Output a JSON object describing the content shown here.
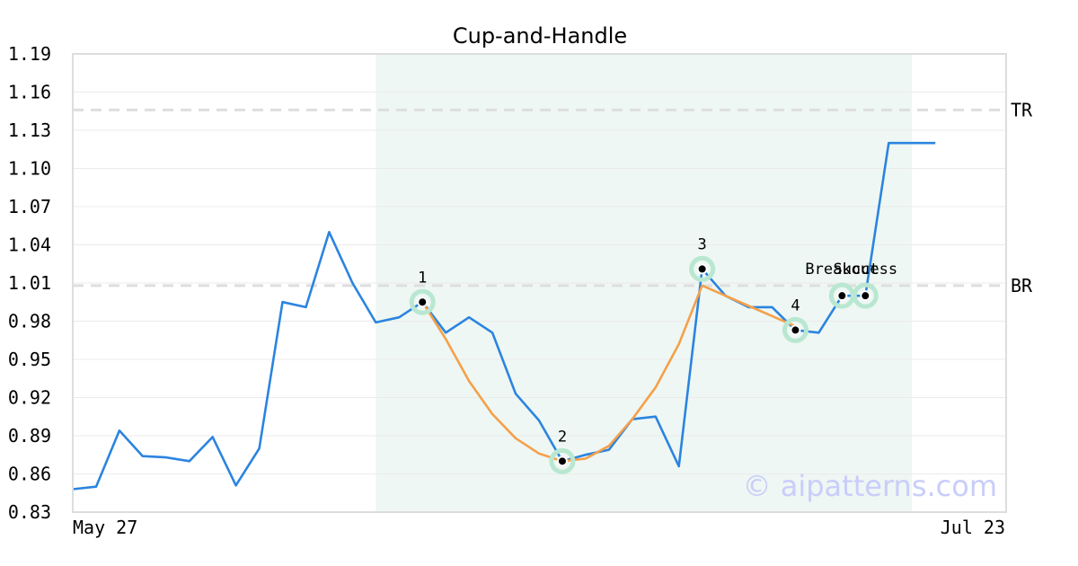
{
  "chart_data": {
    "type": "line",
    "title": "Cup-and-Handle",
    "xlabel": "",
    "ylabel": "",
    "ylim": [
      0.83,
      1.19
    ],
    "y_ticks": [
      "1.19",
      "1.16",
      "1.13",
      "1.10",
      "1.07",
      "1.04",
      "1.01",
      "0.98",
      "0.95",
      "0.92",
      "0.89",
      "0.86",
      "0.83"
    ],
    "x_tick_labels": [
      "May 27",
      "Jul 23"
    ],
    "grid": true,
    "series": [
      {
        "color": "#2b84e0",
        "x": [
          0,
          1,
          2,
          3,
          4,
          5,
          6,
          7,
          8,
          9,
          10,
          11,
          12,
          13,
          14,
          15,
          16,
          17,
          18,
          19,
          20,
          21,
          22,
          23,
          24,
          25,
          26,
          27,
          28,
          29,
          30,
          31,
          32,
          33,
          34,
          35,
          36,
          37
        ],
        "values": [
          0.848,
          0.85,
          0.894,
          0.874,
          0.873,
          0.87,
          0.889,
          0.851,
          0.88,
          0.995,
          0.991,
          1.05,
          1.01,
          0.979,
          0.983,
          0.995,
          0.971,
          0.983,
          0.971,
          0.923,
          0.902,
          0.87,
          0.875,
          0.879,
          0.903,
          0.905,
          0.866,
          1.021,
          1.0,
          0.991,
          0.991,
          0.973,
          0.971,
          1.0,
          1.0,
          1.12,
          1.12,
          1.12
        ]
      },
      {
        "color": "#f5a04a",
        "x": [
          15,
          16,
          17,
          18,
          19,
          20,
          21,
          22,
          23,
          24,
          25,
          26,
          27,
          28,
          29,
          30,
          31
        ],
        "values": [
          0.995,
          0.966,
          0.933,
          0.907,
          0.888,
          0.876,
          0.87,
          0.872,
          0.882,
          0.903,
          0.928,
          0.962,
          1.008,
          1.0,
          0.992,
          0.984,
          0.976
        ]
      }
    ],
    "pattern_region": {
      "x_start": 13,
      "x_end": 36,
      "color": "#eef7f3"
    },
    "reference_lines": [
      {
        "label": "TR",
        "value": 1.146
      },
      {
        "label": "BR",
        "value": 1.008
      }
    ],
    "key_points": [
      {
        "label": "1",
        "x": 15,
        "y": 0.995
      },
      {
        "label": "2",
        "x": 21,
        "y": 0.87
      },
      {
        "label": "3",
        "x": 27,
        "y": 1.021
      },
      {
        "label": "4",
        "x": 31,
        "y": 0.973
      },
      {
        "label": "Breakout",
        "x": 33,
        "y": 1.0
      },
      {
        "label": "Success",
        "x": 34,
        "y": 1.0
      }
    ],
    "watermark": "© aipatterns.com"
  }
}
